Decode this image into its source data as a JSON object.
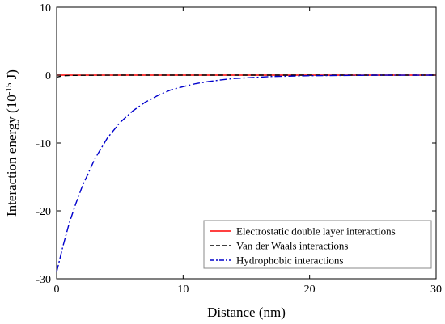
{
  "chart_data": {
    "type": "line",
    "title": "",
    "xlabel": "Distance (nm)",
    "ylabel_main": "Interaction energy (10",
    "ylabel_exp": "-15",
    "ylabel_unit": " J)",
    "xlim": [
      0,
      30
    ],
    "ylim": [
      -30,
      10
    ],
    "xticks": [
      0,
      10,
      20,
      30
    ],
    "yticks": [
      -30,
      -20,
      -10,
      0,
      10
    ],
    "grid": false,
    "legend_position": "bottom-right",
    "series": [
      {
        "name": "Electrostatic double layer interactions",
        "color": "#ff0000",
        "style": "solid",
        "x": [
          0,
          0.5,
          1,
          2,
          5,
          10,
          15,
          20,
          25,
          30
        ],
        "y": [
          0,
          0,
          0,
          0,
          0,
          0,
          0,
          0,
          0,
          0
        ]
      },
      {
        "name": "Van der Waals interactions",
        "color": "#000000",
        "style": "dashed",
        "x": [
          0,
          0.5,
          1,
          2,
          5,
          10,
          15,
          20,
          25,
          30
        ],
        "y": [
          -0.3,
          -0.1,
          -0.05,
          -0.02,
          0,
          0,
          0,
          0,
          0,
          0
        ]
      },
      {
        "name": "Hydrophobic interactions",
        "color": "#0000cc",
        "style": "dashdot",
        "x": [
          0,
          0.5,
          1,
          1.5,
          2,
          3,
          4,
          5,
          6,
          7,
          8,
          9,
          10,
          11,
          12,
          13,
          14,
          15,
          17,
          20,
          25,
          30
        ],
        "y": [
          -29,
          -25.2,
          -21.8,
          -19.0,
          -16.5,
          -12.4,
          -9.3,
          -7.0,
          -5.3,
          -4.0,
          -3.0,
          -2.2,
          -1.7,
          -1.25,
          -0.95,
          -0.7,
          -0.5,
          -0.4,
          -0.2,
          -0.08,
          -0.01,
          0
        ]
      }
    ]
  }
}
